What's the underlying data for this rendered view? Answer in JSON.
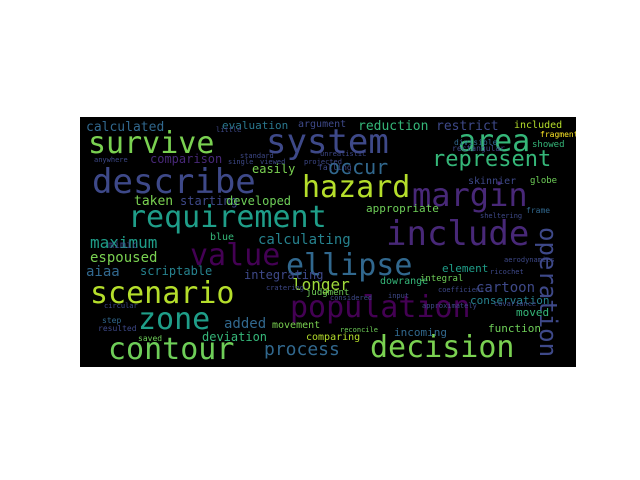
{
  "words": [
    {
      "text": "survive",
      "color": "#7ad151"
    },
    {
      "text": "system",
      "color": "#3e4989"
    },
    {
      "text": "area",
      "color": "#35b779"
    },
    {
      "text": "describe",
      "color": "#3e4989"
    },
    {
      "text": "hazard",
      "color": "#b5de2b"
    },
    {
      "text": "occur",
      "color": "#31688e"
    },
    {
      "text": "represent",
      "color": "#35b779"
    },
    {
      "text": "margin",
      "color": "#482878"
    },
    {
      "text": "requirement",
      "color": "#1f9e89"
    },
    {
      "text": "include",
      "color": "#482878"
    },
    {
      "text": "value",
      "color": "#440154"
    },
    {
      "text": "ellipse",
      "color": "#31688e"
    },
    {
      "text": "scenario",
      "color": "#b5de2b"
    },
    {
      "text": "zone",
      "color": "#1f9e89"
    },
    {
      "text": "population",
      "color": "#440154"
    },
    {
      "text": "operation",
      "color": "#3e4989"
    },
    {
      "text": "contour",
      "color": "#6ece58"
    },
    {
      "text": "decision",
      "color": "#7ad151"
    },
    {
      "text": "process",
      "color": "#31688e"
    },
    {
      "text": "maximum",
      "color": "#1f9e89"
    },
    {
      "text": "espoused",
      "color": "#7ad151"
    },
    {
      "text": "calculating",
      "color": "#26828e"
    },
    {
      "text": "longer",
      "color": "#9fda3a"
    },
    {
      "text": "added",
      "color": "#31688e"
    },
    {
      "text": "cartoon",
      "color": "#3e4989"
    },
    {
      "text": "calculated",
      "color": "#31688e"
    },
    {
      "text": "reduction",
      "color": "#35b779"
    },
    {
      "text": "restrict",
      "color": "#3e4989"
    },
    {
      "text": "evaluation",
      "color": "#2a788e"
    },
    {
      "text": "argument",
      "color": "#3e4989"
    },
    {
      "text": "comparison",
      "color": "#482878"
    },
    {
      "text": "taken",
      "color": "#7ad151"
    },
    {
      "text": "starting",
      "color": "#3e4989"
    },
    {
      "text": "developed",
      "color": "#6ece58"
    },
    {
      "text": "easily",
      "color": "#7ad151"
    },
    {
      "text": "falling",
      "color": "#3e4989"
    },
    {
      "text": "appropriate",
      "color": "#6ece58"
    },
    {
      "text": "skinnier",
      "color": "#3e4989"
    },
    {
      "text": "aiaa",
      "color": "#31688e"
    },
    {
      "text": "scriptable",
      "color": "#26828e"
    },
    {
      "text": "integrating",
      "color": "#3e4989"
    },
    {
      "text": "blue",
      "color": "#35b779"
    },
    {
      "text": "dowrange",
      "color": "#35b779"
    },
    {
      "text": "element",
      "color": "#1f9e89"
    },
    {
      "text": "conservation",
      "color": "#26828e"
    },
    {
      "text": "incoming",
      "color": "#31688e"
    },
    {
      "text": "function",
      "color": "#6ece58"
    },
    {
      "text": "moved",
      "color": "#35b779"
    },
    {
      "text": "deviation",
      "color": "#35b779"
    },
    {
      "text": "movement",
      "color": "#7ad151"
    },
    {
      "text": "comparing",
      "color": "#b5de2b"
    },
    {
      "text": "judgment",
      "color": "#6ece58"
    },
    {
      "text": "mimic",
      "color": "#3e4989"
    },
    {
      "text": "question",
      "color": "#1f9e89"
    },
    {
      "text": "integral",
      "color": "#6ece58"
    },
    {
      "text": "included",
      "color": "#b5de2b"
    },
    {
      "text": "showed",
      "color": "#35b779"
    },
    {
      "text": "fragment",
      "color": "#fde725"
    },
    {
      "text": "globe",
      "color": "#6ece58"
    },
    {
      "text": "frame",
      "color": "#31688e"
    },
    {
      "text": "divisible",
      "color": "#31688e"
    },
    {
      "text": "rectangular",
      "color": "#3e4989"
    },
    {
      "text": "standard",
      "color": "#3e4989"
    },
    {
      "text": "single",
      "color": "#3e4989"
    },
    {
      "text": "viewed",
      "color": "#3e4989"
    },
    {
      "text": "projected",
      "color": "#3e4989"
    },
    {
      "text": "considered",
      "color": "#3e4989"
    },
    {
      "text": "reconcile",
      "color": "#6ece58"
    },
    {
      "text": "cratering",
      "color": "#3e4989"
    },
    {
      "text": "saved",
      "color": "#6ece58"
    },
    {
      "text": "step",
      "color": "#31688e"
    },
    {
      "text": "coefficient",
      "color": "#3e4989"
    },
    {
      "text": "sheltering",
      "color": "#3e4989"
    },
    {
      "text": "ricochet",
      "color": "#3e4989"
    },
    {
      "text": "approximately",
      "color": "#3e4989"
    },
    {
      "text": "aerodynamics",
      "color": "#3e4989"
    },
    {
      "text": "covariance",
      "color": "#3e4989"
    },
    {
      "text": "anywhere",
      "color": "#3e4989"
    },
    {
      "text": "little",
      "color": "#3e4989"
    },
    {
      "text": "circular",
      "color": "#3e4989"
    },
    {
      "text": "input",
      "color": "#3e4989"
    },
    {
      "text": "resulted",
      "color": "#3e4989"
    },
    {
      "text": "unrealistic",
      "color": "#3e4989"
    }
  ]
}
